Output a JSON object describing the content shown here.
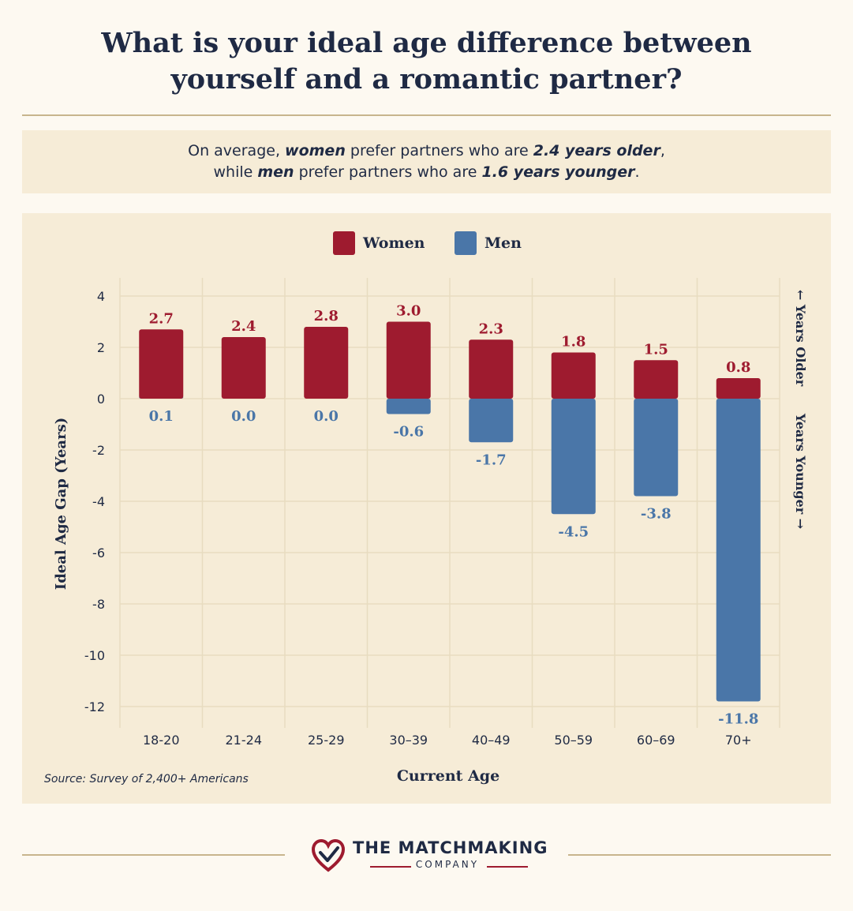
{
  "title": {
    "line1": "What is your ideal age difference between",
    "line2": "yourself and a romantic partner?"
  },
  "summary": {
    "l1_a": "On average, ",
    "l1_b": "women",
    "l1_c": " prefer partners who are ",
    "l1_d": "2.4 years older",
    "l1_e": ",",
    "l2_a": "while ",
    "l2_b": "men",
    "l2_c": " prefer partners who are ",
    "l2_d": "1.6 years younger",
    "l2_e": "."
  },
  "legend": {
    "women": "Women",
    "men": "Men"
  },
  "colors": {
    "women": "#9e1b2f",
    "men": "#4a76a8",
    "text": "#1f2a44",
    "grid": "#e8dcc0"
  },
  "source": "Source: Survey of 2,400+ Americans",
  "brand": {
    "line1": "THE MATCHMAKING",
    "line2": "COMPANY"
  },
  "chart_data": {
    "type": "bar",
    "xlabel": "Current Age",
    "ylabel": "Ideal Age Gap (Years)",
    "side_top": "← Years Older",
    "side_bottom": "Years Younger →",
    "ylim": [
      -12.5,
      4
    ],
    "yticks": [
      4,
      2,
      0,
      -2,
      -4,
      -6,
      -8,
      -10,
      -12
    ],
    "categories": [
      "18-20",
      "21-24",
      "25-29",
      "30–39",
      "40–49",
      "50–59",
      "60–69",
      "70+"
    ],
    "series": [
      {
        "name": "Women",
        "values": [
          2.7,
          2.4,
          2.8,
          3.0,
          2.3,
          1.8,
          1.5,
          0.8
        ],
        "labels": [
          "2.7",
          "2.4",
          "2.8",
          "3.0",
          "2.3",
          "1.8",
          "1.5",
          "0.8"
        ]
      },
      {
        "name": "Men",
        "values": [
          0.1,
          0.0,
          0.0,
          -0.6,
          -1.7,
          -4.5,
          -3.8,
          -11.8
        ],
        "labels": [
          "0.1",
          "0.0",
          "0.0",
          "-0.6",
          "-1.7",
          "-4.5",
          "-3.8",
          "-11.8"
        ]
      }
    ],
    "grid": true,
    "legend_position": "top-center"
  }
}
